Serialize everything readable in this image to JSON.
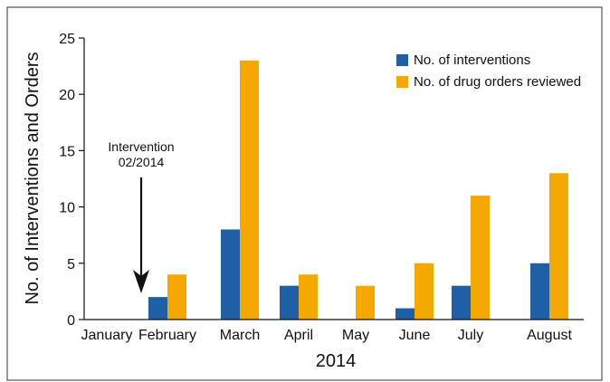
{
  "chart_data": {
    "type": "bar",
    "categories": [
      "January",
      "February",
      "March",
      "April",
      "May",
      "June",
      "July",
      "August"
    ],
    "series": [
      {
        "name": "No. of interventions",
        "values": [
          0,
          2,
          8,
          3,
          0,
          1,
          3,
          5
        ]
      },
      {
        "name": "No. of drug orders reviewed",
        "values": [
          0,
          4,
          23,
          4,
          3,
          5,
          11,
          13
        ]
      }
    ],
    "title": "",
    "xlabel": "2014",
    "ylabel": "No. of Interventions and Orders",
    "ylim": [
      0,
      25
    ],
    "yticks": [
      0,
      5,
      10,
      15,
      20,
      25
    ],
    "legend_position": "top-right",
    "grid": false,
    "annotation": {
      "lines": [
        "Intervention",
        "02/2014"
      ],
      "category": "January"
    },
    "colors": {
      "series": [
        "#1f5fa8",
        "#f5a800"
      ],
      "axis": "#111111",
      "frame": "#333333"
    }
  }
}
